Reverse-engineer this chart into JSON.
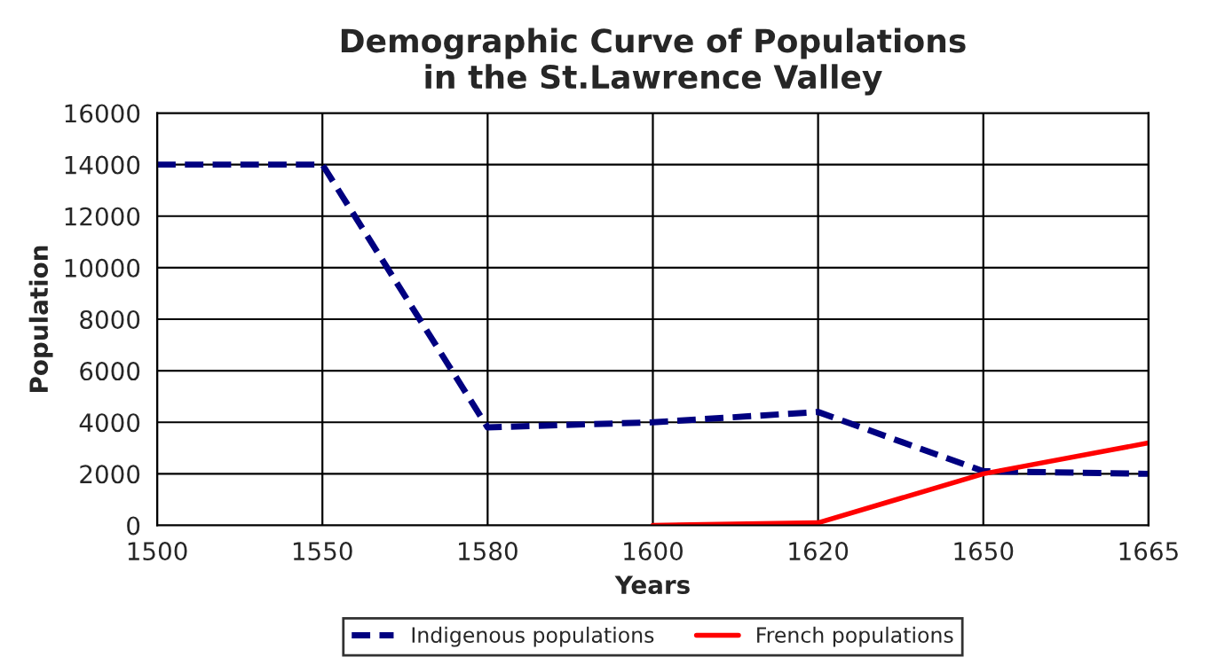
{
  "chart_data": {
    "type": "line",
    "title": "Demographic Curve of Populations\nin the St.Lawrence Valley",
    "xlabel": "Years",
    "ylabel": "Population",
    "categories": [
      "1500",
      "1550",
      "1580",
      "1600",
      "1620",
      "1650",
      "1665"
    ],
    "series": [
      {
        "name": "Indigenous populations",
        "color": "#000080",
        "line_style": "dashed",
        "values": [
          14000,
          14000,
          3800,
          4000,
          4400,
          2100,
          2000
        ]
      },
      {
        "name": "French populations",
        "color": "#ff0000",
        "line_style": "solid",
        "values": [
          null,
          null,
          null,
          0,
          100,
          2000,
          3200
        ]
      }
    ],
    "ylim": [
      0,
      16000
    ],
    "yticks": [
      0,
      2000,
      4000,
      6000,
      8000,
      10000,
      12000,
      14000,
      16000
    ],
    "grid": true,
    "legend": "bottom",
    "marker": "none"
  }
}
